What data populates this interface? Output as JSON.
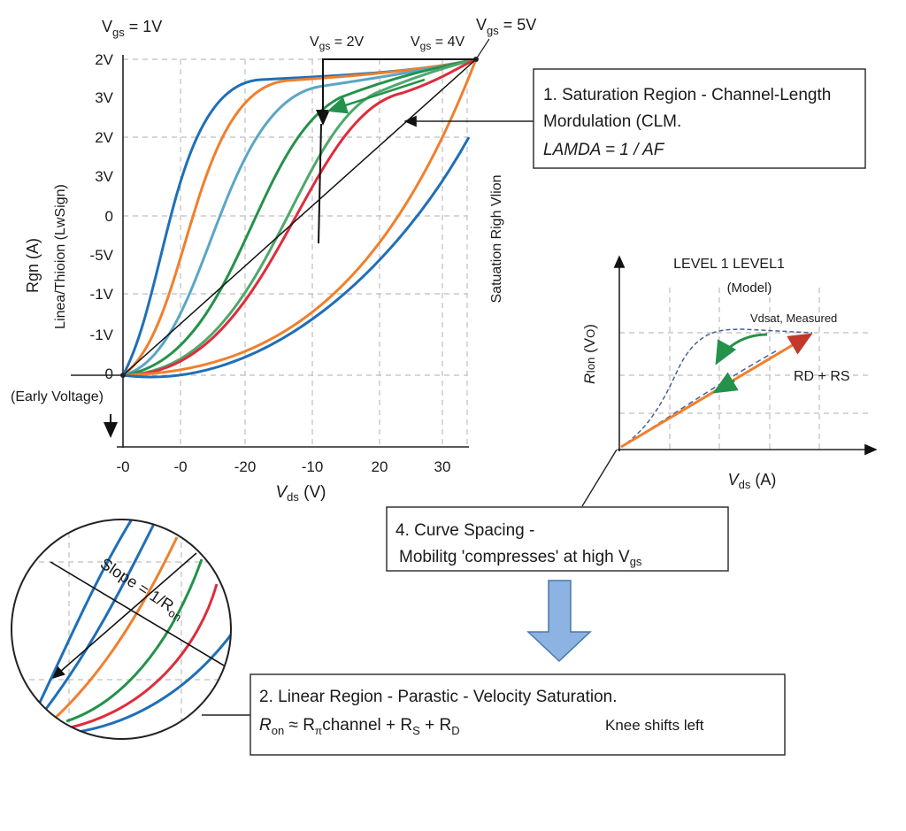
{
  "main_plot": {
    "vgs_labels": {
      "v1": {
        "base": "V",
        "sub": "gs",
        "val": " = 1V"
      },
      "v2": {
        "base": "V",
        "sub": "gs",
        "val": " = 2V"
      },
      "v4": {
        "base": "V",
        "sub": "gs",
        "val": " = 4V"
      },
      "v5": {
        "base": "V",
        "sub": "gs",
        "val": " = 5V"
      }
    },
    "y_ticks": [
      "2V",
      "3V",
      "2V",
      "3V",
      "0",
      "-5V",
      "-1V",
      "-1V",
      "0"
    ],
    "x_ticks": [
      "-0",
      "-0",
      "-20",
      "-10",
      "20",
      "30"
    ],
    "x_label": {
      "base": "V",
      "sub": "ds",
      "rest": " (V)"
    },
    "y_label": "Rgn  (A)",
    "y_label2": "Linea/Thioion (LwSign)",
    "right_label": "Satuation Righ Vlion",
    "early_voltage": "(Early Voltage)",
    "curve_colors": [
      "#1f6fb8",
      "#f07f2c",
      "#5aa6c4",
      "#24924a",
      "#4ea86a",
      "#dd2d3c",
      "#f07f2c",
      "#1f6fb8"
    ]
  },
  "callout1": {
    "line1": "1. Saturation Region - Channel-Length",
    "line2": "Mordulation (CLM.",
    "line3": "LAMDA = 1 / AF"
  },
  "inset_plot": {
    "title": "LEVEL 1 LEVEL1",
    "subtitle": "(Model)",
    "annotation": "Vdsat, Measured",
    "rd_rs": "RD + RS",
    "y_label": {
      "base": "R",
      "sub": "Ion",
      "rest": " (V",
      "sub2": "O",
      "end": ")"
    },
    "x_label": {
      "base": "V",
      "sub": "ds",
      "rest": "  (A)"
    }
  },
  "callout4": {
    "line1": "4. Curve Spacing -",
    "line2": "Mobilitg 'compresses' at high V",
    "line2_sub": "gs"
  },
  "callout2": {
    "line1": "2. Linear Region - Parastic - Velocity Saturation.",
    "formula": {
      "r": "R",
      "on": "on",
      "approx": " ≈ R",
      "pi": "π",
      "channel": "channel + R",
      "s": "S",
      "plus": " + R",
      "d": "D"
    },
    "note": "Knee shifts left"
  },
  "zoom_circle": {
    "slope_label": "Slope = 1/R",
    "slope_sub": "on"
  },
  "colors": {
    "arrow_fill": "#8db3e2",
    "arrow_stroke": "#4a78b0",
    "green_arrow": "#24924a",
    "orange_line": "#f07f2c"
  }
}
